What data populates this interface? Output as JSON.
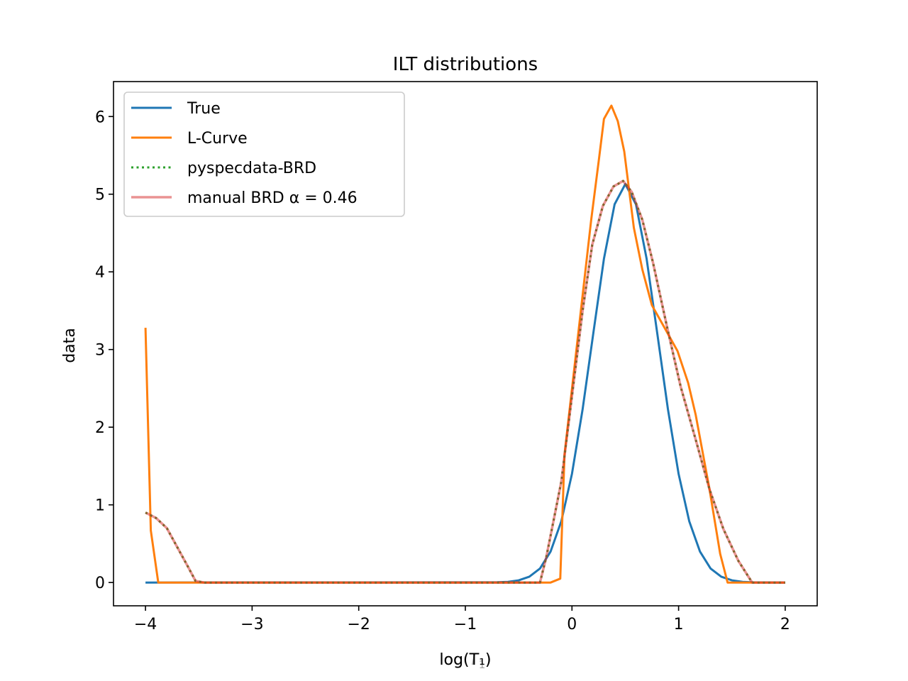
{
  "chart_data": {
    "type": "line",
    "title": "ILT distributions",
    "xlabel": "log(T₁)",
    "xlabel_parts": {
      "pre": "log(",
      "var": "T",
      "sub": "1",
      "post": ")"
    },
    "ylabel": "data",
    "xlim": [
      -4.3,
      2.3
    ],
    "ylim": [
      -0.3,
      6.45
    ],
    "xticks": [
      -4,
      -3,
      -2,
      -1,
      0,
      1,
      2
    ],
    "xtick_labels": [
      "−4",
      "−3",
      "−2",
      "−1",
      "0",
      "1",
      "2"
    ],
    "yticks": [
      0,
      1,
      2,
      3,
      4,
      5,
      6
    ],
    "ytick_labels": [
      "0",
      "1",
      "2",
      "3",
      "4",
      "5",
      "6"
    ],
    "grid": false,
    "legend_position": "top-left",
    "series": [
      {
        "name": "True",
        "color": "#1f77b4",
        "style": "solid",
        "x": [
          -4.0,
          -0.7,
          -0.6,
          -0.5,
          -0.4,
          -0.3,
          -0.2,
          -0.1,
          0.0,
          0.1,
          0.2,
          0.3,
          0.4,
          0.5,
          0.6,
          0.7,
          0.8,
          0.9,
          1.0,
          1.1,
          1.2,
          1.3,
          1.4,
          1.5,
          1.6,
          1.7,
          2.0
        ],
        "y": [
          0,
          0.003,
          0.009,
          0.028,
          0.075,
          0.18,
          0.4,
          0.79,
          1.4,
          2.23,
          3.21,
          4.17,
          4.87,
          5.13,
          4.87,
          4.17,
          3.21,
          2.23,
          1.4,
          0.79,
          0.4,
          0.18,
          0.075,
          0.028,
          0.009,
          0.002,
          0
        ]
      },
      {
        "name": "L-Curve",
        "color": "#ff7f0e",
        "style": "solid",
        "x": [
          -4.0,
          -3.95,
          -3.88,
          -0.2,
          -0.11,
          -0.07,
          0.18,
          0.25,
          0.3,
          0.37,
          0.43,
          0.49,
          0.58,
          0.66,
          0.75,
          0.86,
          0.99,
          1.09,
          1.16,
          1.29,
          1.39,
          1.46,
          2.0
        ],
        "y": [
          3.28,
          0.67,
          0,
          0,
          0.05,
          1.65,
          4.67,
          5.42,
          5.97,
          6.14,
          5.94,
          5.55,
          4.57,
          4.03,
          3.57,
          3.3,
          2.98,
          2.57,
          2.16,
          1.2,
          0.37,
          0,
          0
        ]
      },
      {
        "name": "pyspecdata-BRD",
        "color": "#2ca02c",
        "style": "dotted",
        "x": [
          -4.0,
          -3.9,
          -3.8,
          -3.7,
          -3.6,
          -3.53,
          -3.45,
          -0.3,
          -0.24,
          -0.1,
          0.0,
          0.1,
          0.19,
          0.29,
          0.39,
          0.48,
          0.56,
          0.66,
          0.76,
          0.89,
          1.02,
          1.16,
          1.29,
          1.42,
          1.56,
          1.69,
          2.0
        ],
        "y": [
          0.9,
          0.83,
          0.7,
          0.45,
          0.2,
          0.02,
          0,
          0,
          0.33,
          1.3,
          2.4,
          3.5,
          4.35,
          4.85,
          5.1,
          5.17,
          5.03,
          4.67,
          4.12,
          3.3,
          2.52,
          1.84,
          1.2,
          0.69,
          0.28,
          0,
          0
        ]
      },
      {
        "name": "manual BRD α = 0.46",
        "color": "#d62728",
        "style": "solid-alpha",
        "x": [
          -4.0,
          -3.9,
          -3.8,
          -3.7,
          -3.6,
          -3.53,
          -3.45,
          -0.3,
          -0.24,
          -0.1,
          0.0,
          0.1,
          0.19,
          0.29,
          0.39,
          0.48,
          0.56,
          0.66,
          0.76,
          0.89,
          1.02,
          1.16,
          1.29,
          1.42,
          1.56,
          1.69,
          2.0
        ],
        "y": [
          0.9,
          0.83,
          0.7,
          0.45,
          0.2,
          0.02,
          0,
          0,
          0.33,
          1.3,
          2.4,
          3.5,
          4.35,
          4.85,
          5.1,
          5.17,
          5.03,
          4.67,
          4.12,
          3.3,
          2.52,
          1.84,
          1.2,
          0.69,
          0.28,
          0,
          0
        ]
      }
    ],
    "legend": [
      "True",
      "L-Curve",
      "pyspecdata-BRD",
      "manual BRD α = 0.46"
    ]
  }
}
